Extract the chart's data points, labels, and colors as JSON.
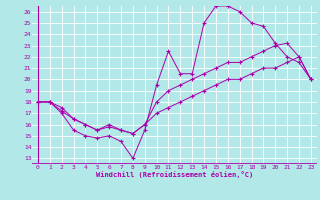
{
  "xlabel": "Windchill (Refroidissement éolien,°C)",
  "bg_color": "#b2e8e8",
  "line_color": "#aa00aa",
  "grid_color": "#ffffff",
  "xlim": [
    -0.5,
    23.5
  ],
  "ylim": [
    12.5,
    26.5
  ],
  "yticks": [
    13,
    14,
    15,
    16,
    17,
    18,
    19,
    20,
    21,
    22,
    23,
    24,
    25,
    26
  ],
  "xticks": [
    0,
    1,
    2,
    3,
    4,
    5,
    6,
    7,
    8,
    9,
    10,
    11,
    12,
    13,
    14,
    15,
    16,
    17,
    18,
    19,
    20,
    21,
    22,
    23
  ],
  "line1_x": [
    0,
    1,
    2,
    3,
    4,
    5,
    6,
    7,
    8,
    9,
    10,
    11,
    12,
    13,
    14,
    15,
    16,
    17,
    18,
    19,
    20,
    21,
    22,
    23
  ],
  "line1_y": [
    18,
    18,
    17,
    15.5,
    15,
    14.8,
    15,
    14.5,
    13,
    15.5,
    19.5,
    22.5,
    20.5,
    20.5,
    25,
    26.5,
    26.5,
    26,
    25,
    24.7,
    23.2,
    22,
    21.5,
    20
  ],
  "line2_x": [
    0,
    1,
    2,
    3,
    4,
    5,
    6,
    7,
    8,
    9,
    10,
    11,
    12,
    13,
    14,
    15,
    16,
    17,
    18,
    19,
    20,
    21,
    22,
    23
  ],
  "line2_y": [
    18,
    18,
    17.5,
    16.5,
    16,
    15.5,
    16,
    15.5,
    15.2,
    16,
    18,
    19,
    19.5,
    20,
    20.5,
    21,
    21.5,
    21.5,
    22,
    22.5,
    23,
    23.2,
    22,
    20
  ],
  "line3_x": [
    0,
    1,
    2,
    3,
    4,
    5,
    6,
    7,
    8,
    9,
    10,
    11,
    12,
    13,
    14,
    15,
    16,
    17,
    18,
    19,
    20,
    21,
    22,
    23
  ],
  "line3_y": [
    18,
    18,
    17.2,
    16.5,
    16,
    15.5,
    15.8,
    15.5,
    15.2,
    16,
    17,
    17.5,
    18,
    18.5,
    19,
    19.5,
    20,
    20,
    20.5,
    21,
    21,
    21.5,
    22,
    20
  ]
}
